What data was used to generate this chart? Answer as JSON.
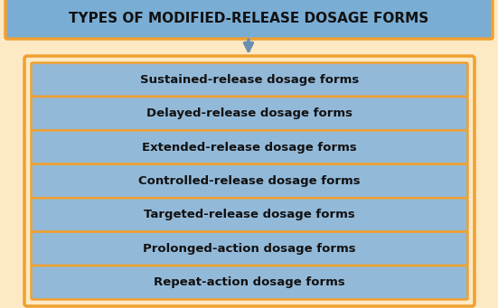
{
  "title": "TYPES OF MODIFIED-RELEASE DOSAGE FORMS",
  "items": [
    "Sustained-release dosage forms",
    "Delayed-release dosage forms",
    "Extended-release dosage forms",
    "Controlled-release dosage forms",
    "Targeted-release dosage forms",
    "Prolonged-action dosage forms",
    "Repeat-action dosage forms"
  ],
  "title_box_color": "#7aadd4",
  "title_box_edge_color": "#f0a030",
  "title_text_color": "#111111",
  "item_box_color": "#93b9d8",
  "item_box_edge_color": "#f0a030",
  "outer_box_color": "#fde9c4",
  "outer_box_edge_color": "#f0a030",
  "item_text_color": "#111111",
  "bg_color": "#fde9c4",
  "arrow_color": "#6a8fb0",
  "fig_width": 5.51,
  "fig_height": 3.41,
  "dpi": 100
}
